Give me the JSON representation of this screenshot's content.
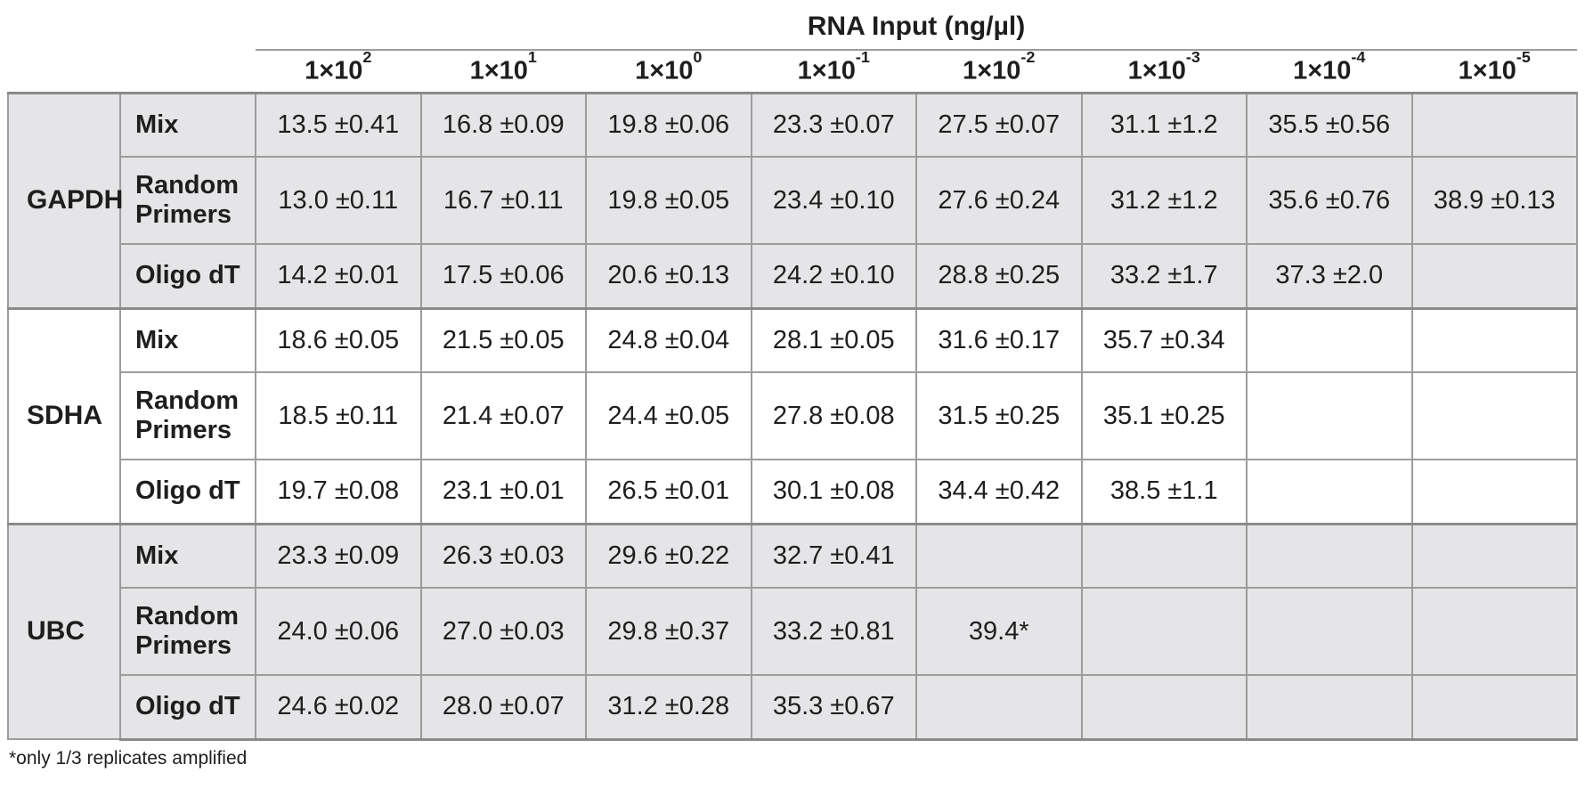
{
  "title": "RNA Input (ng/µl)",
  "footnote": "*only 1/3 replicates amplified",
  "colors": {
    "shaded_row_bg": "#e5e5e7",
    "white_row_bg": "#ffffff",
    "border": "#9c9c9c",
    "text": "#1e1e1e"
  },
  "columns": [
    {
      "base": "1×10",
      "exp": "2"
    },
    {
      "base": "1×10",
      "exp": "1"
    },
    {
      "base": "1×10",
      "exp": "0"
    },
    {
      "base": "1×10",
      "exp": "-1"
    },
    {
      "base": "1×10",
      "exp": "-2"
    },
    {
      "base": "1×10",
      "exp": "-3"
    },
    {
      "base": "1×10",
      "exp": "-4"
    },
    {
      "base": "1×10",
      "exp": "-5"
    }
  ],
  "groups": [
    {
      "gene": "GAPDH",
      "shaded": true,
      "rows": [
        {
          "label": "Mix",
          "values": [
            "13.5 ±0.41",
            "16.8 ±0.09",
            "19.8 ±0.06",
            "23.3 ±0.07",
            "27.5 ±0.07",
            "31.1 ±1.2",
            "35.5 ±0.56",
            ""
          ]
        },
        {
          "label": "Random Primers",
          "values": [
            "13.0 ±0.11",
            "16.7 ±0.11",
            "19.8 ±0.05",
            "23.4 ±0.10",
            "27.6 ±0.24",
            "31.2 ±1.2",
            "35.6 ±0.76",
            "38.9 ±0.13"
          ]
        },
        {
          "label": "Oligo dT",
          "values": [
            "14.2 ±0.01",
            "17.5 ±0.06",
            "20.6 ±0.13",
            "24.2 ±0.10",
            "28.8 ±0.25",
            "33.2 ±1.7",
            "37.3 ±2.0",
            ""
          ]
        }
      ]
    },
    {
      "gene": "SDHA",
      "shaded": false,
      "rows": [
        {
          "label": "Mix",
          "values": [
            "18.6 ±0.05",
            "21.5 ±0.05",
            "24.8 ±0.04",
            "28.1 ±0.05",
            "31.6 ±0.17",
            "35.7 ±0.34",
            "",
            ""
          ]
        },
        {
          "label": "Random Primers",
          "values": [
            "18.5 ±0.11",
            "21.4 ±0.07",
            "24.4 ±0.05",
            "27.8 ±0.08",
            "31.5 ±0.25",
            "35.1 ±0.25",
            "",
            ""
          ]
        },
        {
          "label": "Oligo dT",
          "values": [
            "19.7 ±0.08",
            "23.1 ±0.01",
            "26.5 ±0.01",
            "30.1 ±0.08",
            "34.4 ±0.42",
            "38.5 ±1.1",
            "",
            ""
          ]
        }
      ]
    },
    {
      "gene": "UBC",
      "shaded": true,
      "rows": [
        {
          "label": "Mix",
          "values": [
            "23.3 ±0.09",
            "26.3 ±0.03",
            "29.6 ±0.22",
            "32.7 ±0.41",
            "",
            "",
            "",
            ""
          ]
        },
        {
          "label": "Random Primers",
          "values": [
            "24.0 ±0.06",
            "27.0 ±0.03",
            "29.8 ±0.37",
            "33.2 ±0.81",
            "39.4*",
            "",
            "",
            ""
          ]
        },
        {
          "label": "Oligo dT",
          "values": [
            "24.6 ±0.02",
            "28.0 ±0.07",
            "31.2 ±0.28",
            "35.3 ±0.67",
            "",
            "",
            "",
            ""
          ]
        }
      ]
    }
  ],
  "chart_data": {
    "type": "table",
    "title": "RNA Input (ng/µl)",
    "column_headers": [
      "1×10^2",
      "1×10^1",
      "1×10^0",
      "1×10^-1",
      "1×10^-2",
      "1×10^-3",
      "1×10^-4",
      "1×10^-5"
    ],
    "row_groups": [
      "GAPDH",
      "SDHA",
      "UBC"
    ],
    "row_labels": [
      "Mix",
      "Random Primers",
      "Oligo dT"
    ],
    "series": [
      {
        "name": "GAPDH Mix",
        "values": [
          "13.5 ±0.41",
          "16.8 ±0.09",
          "19.8 ±0.06",
          "23.3 ±0.07",
          "27.5 ±0.07",
          "31.1 ±1.2",
          "35.5 ±0.56",
          null
        ]
      },
      {
        "name": "GAPDH Random Primers",
        "values": [
          "13.0 ±0.11",
          "16.7 ±0.11",
          "19.8 ±0.05",
          "23.4 ±0.10",
          "27.6 ±0.24",
          "31.2 ±1.2",
          "35.6 ±0.76",
          "38.9 ±0.13"
        ]
      },
      {
        "name": "GAPDH Oligo dT",
        "values": [
          "14.2 ±0.01",
          "17.5 ±0.06",
          "20.6 ±0.13",
          "24.2 ±0.10",
          "28.8 ±0.25",
          "33.2 ±1.7",
          "37.3 ±2.0",
          null
        ]
      },
      {
        "name": "SDHA Mix",
        "values": [
          "18.6 ±0.05",
          "21.5 ±0.05",
          "24.8 ±0.04",
          "28.1 ±0.05",
          "31.6 ±0.17",
          "35.7 ±0.34",
          null,
          null
        ]
      },
      {
        "name": "SDHA Random Primers",
        "values": [
          "18.5 ±0.11",
          "21.4 ±0.07",
          "24.4 ±0.05",
          "27.8 ±0.08",
          "31.5 ±0.25",
          "35.1 ±0.25",
          null,
          null
        ]
      },
      {
        "name": "SDHA Oligo dT",
        "values": [
          "19.7 ±0.08",
          "23.1 ±0.01",
          "26.5 ±0.01",
          "30.1 ±0.08",
          "34.4 ±0.42",
          "38.5 ±1.1",
          null,
          null
        ]
      },
      {
        "name": "UBC Mix",
        "values": [
          "23.3 ±0.09",
          "26.3 ±0.03",
          "29.6 ±0.22",
          "32.7 ±0.41",
          null,
          null,
          null,
          null
        ]
      },
      {
        "name": "UBC Random Primers",
        "values": [
          "24.0 ±0.06",
          "27.0 ±0.03",
          "29.8 ±0.37",
          "33.2 ±0.81",
          "39.4*",
          null,
          null,
          null
        ]
      },
      {
        "name": "UBC Oligo dT",
        "values": [
          "24.6 ±0.02",
          "28.0 ±0.07",
          "31.2 ±0.28",
          "35.3 ±0.67",
          null,
          null,
          null,
          null
        ]
      }
    ],
    "footnote": "*only 1/3 replicates amplified"
  }
}
